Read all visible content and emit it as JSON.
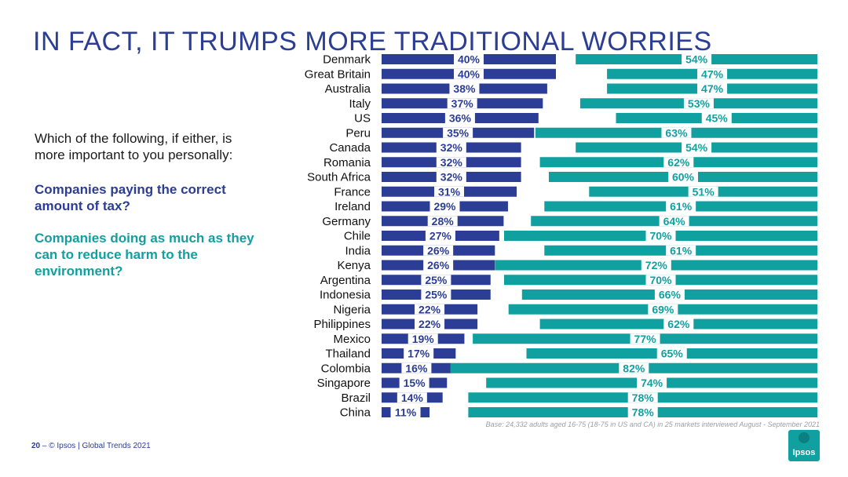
{
  "title": "IN FACT, IT TRUMPS MORE TRADITIONAL WORRIES",
  "question": "Which of the following, if either, is more important to you personally:",
  "option_tax": "Companies paying the correct amount of tax?",
  "option_env": "Companies doing as much as they can to reduce harm to the environment?",
  "base_note": "Base: 24,332 adults aged 16-75 (18-75 in US and CA) in 25 markets interviewed August - September 2021",
  "footer": {
    "page": "20",
    "sep": "–",
    "text": "© Ipsos | Global Trends 2021"
  },
  "logo_text": "Ipsos",
  "colors": {
    "tax": "#2b3d95",
    "env": "#11a0a0"
  },
  "chart_data": {
    "type": "bar",
    "categories": [
      "Denmark",
      "Great Britain",
      "Australia",
      "Italy",
      "US",
      "Peru",
      "Canada",
      "Romania",
      "South Africa",
      "France",
      "Ireland",
      "Germany",
      "Chile",
      "India",
      "Kenya",
      "Argentina",
      "Indonesia",
      "Nigeria",
      "Philippines",
      "Mexico",
      "Thailand",
      "Colombia",
      "Singapore",
      "Brazil",
      "China"
    ],
    "series": [
      {
        "values": [
          40,
          40,
          38,
          37,
          36,
          35,
          32,
          32,
          32,
          31,
          29,
          28,
          27,
          26,
          26,
          25,
          25,
          22,
          22,
          19,
          17,
          16,
          15,
          14,
          11
        ],
        "color": "#2b3d95"
      },
      {
        "values": [
          54,
          47,
          47,
          53,
          45,
          63,
          54,
          62,
          60,
          51,
          61,
          64,
          70,
          61,
          72,
          70,
          66,
          69,
          62,
          77,
          65,
          82,
          74,
          78,
          78
        ],
        "color": "#11a0a0"
      }
    ],
    "labels_tax": [
      "40%",
      "40%",
      "38%",
      "37%",
      "36%",
      "35%",
      "32%",
      "32%",
      "32%",
      "31%",
      "29%",
      "28%",
      "27%",
      "26%",
      "26%",
      "25%",
      "25%",
      "22%",
      "22%",
      "19%",
      "17%",
      "16%",
      "15%",
      "14%",
      "11%"
    ],
    "labels_env": [
      "54%",
      "47%",
      "47%",
      "53%",
      "45%",
      "63%",
      "54%",
      "62%",
      "60%",
      "51%",
      "61%",
      "64%",
      "70%",
      "61%",
      "72%",
      "70%",
      "66%",
      "69%",
      "62%",
      "77%",
      "65%",
      "82%",
      "74%",
      "78%",
      "78%"
    ],
    "orientation": "horizontal",
    "xlim": [
      0,
      100
    ],
    "grid": false
  }
}
